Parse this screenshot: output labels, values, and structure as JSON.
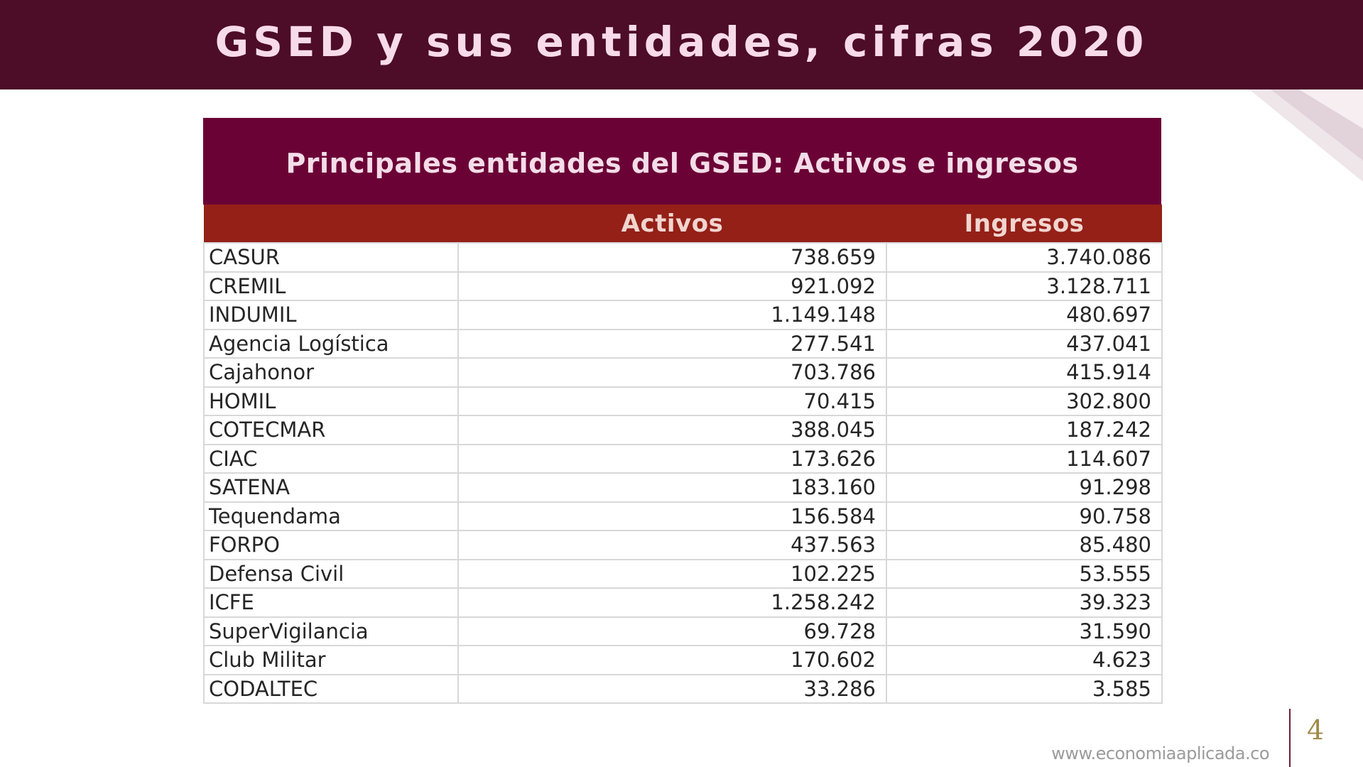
{
  "slide": {
    "title": "GSED y sus entidades, cifras 2020",
    "footer_url": "www.economiaaplicada.co",
    "page_number": "4"
  },
  "table": {
    "caption": "Principales entidades del GSED: Activos e ingresos",
    "headers": [
      "",
      "Activos",
      "Ingresos"
    ],
    "rows": [
      {
        "entity": "CASUR",
        "activos": "738.659",
        "ingresos": "3.740.086"
      },
      {
        "entity": "CREMIL",
        "activos": "921.092",
        "ingresos": "3.128.711"
      },
      {
        "entity": "INDUMIL",
        "activos": "1.149.148",
        "ingresos": "480.697"
      },
      {
        "entity": "Agencia Logística",
        "activos": "277.541",
        "ingresos": "437.041"
      },
      {
        "entity": "Cajahonor",
        "activos": "703.786",
        "ingresos": "415.914"
      },
      {
        "entity": "HOMIL",
        "activos": "70.415",
        "ingresos": "302.800"
      },
      {
        "entity": "COTECMAR",
        "activos": "388.045",
        "ingresos": "187.242"
      },
      {
        "entity": "CIAC",
        "activos": "173.626",
        "ingresos": "114.607"
      },
      {
        "entity": "SATENA",
        "activos": "183.160",
        "ingresos": "91.298"
      },
      {
        "entity": "Tequendama",
        "activos": "156.584",
        "ingresos": "90.758"
      },
      {
        "entity": "FORPO",
        "activos": "437.563",
        "ingresos": "85.480"
      },
      {
        "entity": "Defensa Civil",
        "activos": "102.225",
        "ingresos": "53.555"
      },
      {
        "entity": "ICFE",
        "activos": "1.258.242",
        "ingresos": "39.323"
      },
      {
        "entity": "SuperVigilancia",
        "activos": "69.728",
        "ingresos": "31.590"
      },
      {
        "entity": "Club Militar",
        "activos": "170.602",
        "ingresos": "4.623"
      },
      {
        "entity": "CODALTEC",
        "activos": "33.286",
        "ingresos": "3.585"
      }
    ]
  },
  "colors": {
    "title_bar": "#4d0c28",
    "caption_bg": "#6b0236",
    "header_bg": "#942018"
  }
}
